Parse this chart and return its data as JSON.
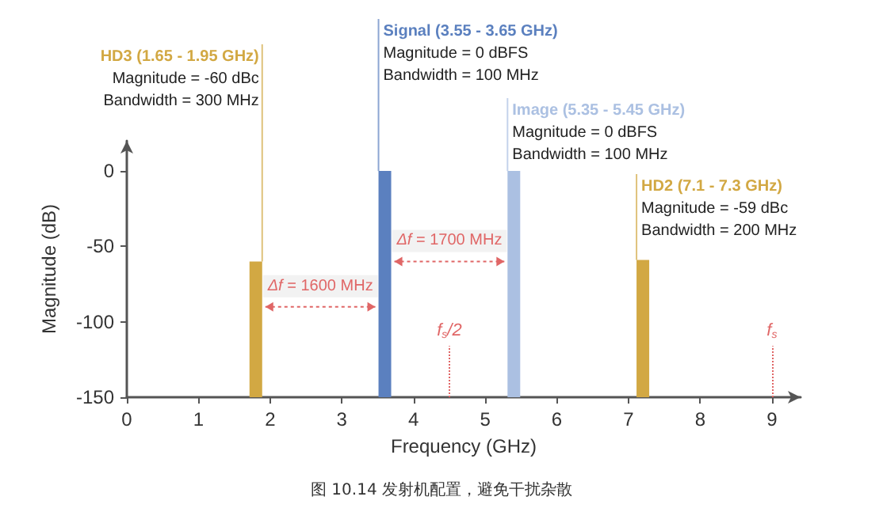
{
  "chart_data": {
    "type": "bar",
    "xlabel": "Frequency (GHz)",
    "ylabel": "Magnitude (dB)",
    "x": [
      1.8,
      3.6,
      5.4,
      7.2
    ],
    "base": [
      -150,
      -150,
      -150,
      -150
    ],
    "values": [
      90,
      150,
      150,
      91
    ],
    "colors": [
      "#d2a843",
      "#5b80bf",
      "#abc0e2",
      "#d2a843"
    ],
    "xlim": [
      0,
      9.4
    ],
    "xticks": [
      0,
      1,
      2,
      3,
      4,
      5,
      6,
      7,
      8,
      9
    ],
    "ylim": [
      -150,
      20
    ],
    "yticks": [
      -150,
      -100,
      -50,
      0
    ],
    "grid": false,
    "ref_lines": [
      {
        "axis": "x",
        "value": 4.5,
        "label": "f$_{s}$/2",
        "color": "#e06666",
        "line_style": "dotted"
      },
      {
        "axis": "x",
        "value": 9,
        "label": "f$_{s}$",
        "color": "#e06666",
        "line_style": "dotted"
      }
    ],
    "annotations": [
      {
        "text": "HD3 (1.65 - 1.95 GHz)\nMagnitude = -60 dBc\nBandwidth = 300 MHz",
        "x": 1.8,
        "y": -60
      },
      {
        "text": "Signal (3.55 - 3.65 GHz)\nMagnitude = 0 dBFS\nBandwidth = 100 MHz",
        "x": 3.6,
        "y": 0
      },
      {
        "text": "Image (5.35 - 5.45 GHz)\nMagnitude = 0 dBFS\nBandwidth = 100 MHz",
        "x": 5.4,
        "y": 0
      },
      {
        "text": "HD2 (7.1 - 7.3 GHz)\nMagnitude = -59 dBc\nBandwidth = 200 MHz",
        "x": 7.2,
        "y": -59
      },
      {
        "text": "Δf = 1600 MHz",
        "x": 3.6,
        "y": -90
      },
      {
        "text": "Δf = 1700 MHz",
        "x": 5.4,
        "y": -60
      },
      "图 10.14 发射机配置，避免干扰杂散"
    ]
  }
}
